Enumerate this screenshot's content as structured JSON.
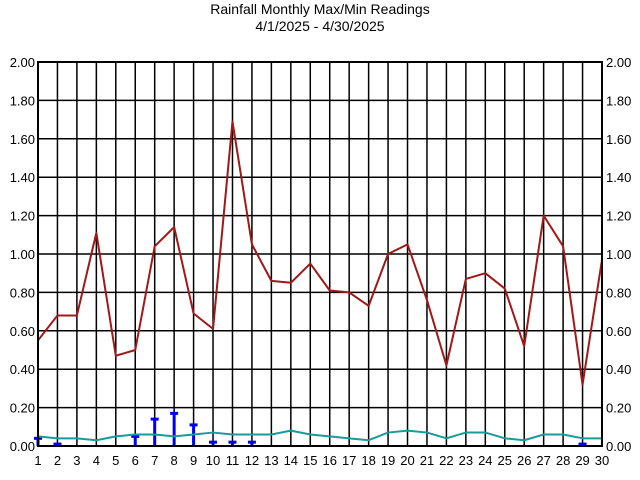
{
  "chart_data": {
    "type": "line",
    "title": "Rainfall Monthly Max/Min Readings",
    "subtitle": "4/1/2025 - 4/30/2025",
    "xlabel": "",
    "ylabel": "",
    "x": [
      1,
      2,
      3,
      4,
      5,
      6,
      7,
      8,
      9,
      10,
      11,
      12,
      13,
      14,
      15,
      16,
      17,
      18,
      19,
      20,
      21,
      22,
      23,
      24,
      25,
      26,
      27,
      28,
      29,
      30
    ],
    "x_tick_labels": [
      "1",
      "2",
      "3",
      "4",
      "5",
      "6",
      "7",
      "8",
      "9",
      "10",
      "11",
      "12",
      "13",
      "14",
      "15",
      "16",
      "17",
      "18",
      "19",
      "20",
      "21",
      "22",
      "23",
      "24",
      "25",
      "26",
      "27",
      "28",
      "29",
      "30"
    ],
    "ylim": [
      0,
      2.0
    ],
    "y_tick_labels": [
      "0.00",
      "0.20",
      "0.40",
      "0.60",
      "0.80",
      "1.00",
      "1.20",
      "1.40",
      "1.60",
      "1.80",
      "2.00"
    ],
    "y_tick_values": [
      0,
      0.2,
      0.4,
      0.6,
      0.8,
      1.0,
      1.2,
      1.4,
      1.6,
      1.8,
      2.0
    ],
    "grid": true,
    "legend": "none",
    "series": [
      {
        "color": "#a01818",
        "values": [
          0.55,
          0.68,
          0.68,
          1.11,
          0.47,
          0.5,
          1.04,
          1.14,
          0.69,
          0.61,
          1.69,
          1.05,
          0.86,
          0.85,
          0.95,
          0.81,
          0.8,
          0.73,
          1.0,
          1.05,
          0.76,
          0.42,
          0.87,
          0.9,
          0.82,
          0.52,
          1.2,
          1.04,
          0.32,
          0.97
        ]
      },
      {
        "color": "#1a9a9a",
        "values": [
          0.05,
          0.04,
          0.04,
          0.03,
          0.05,
          0.06,
          0.06,
          0.05,
          0.06,
          0.07,
          0.06,
          0.06,
          0.06,
          0.08,
          0.06,
          0.05,
          0.04,
          0.03,
          0.07,
          0.08,
          0.07,
          0.04,
          0.07,
          0.07,
          0.04,
          0.03,
          0.06,
          0.06,
          0.04,
          0.04
        ]
      }
    ],
    "bars": {
      "color": "#0000ee",
      "values": [
        0.04,
        0.01,
        0.0,
        0.0,
        0.0,
        0.05,
        0.14,
        0.17,
        0.11,
        0.02,
        0.02,
        0.02,
        0.0,
        0.0,
        0.0,
        0.0,
        0.0,
        0.0,
        0.0,
        0.0,
        0.0,
        0.0,
        0.0,
        0.0,
        0.0,
        0.0,
        0.0,
        0.0,
        0.01,
        0.0
      ]
    }
  }
}
